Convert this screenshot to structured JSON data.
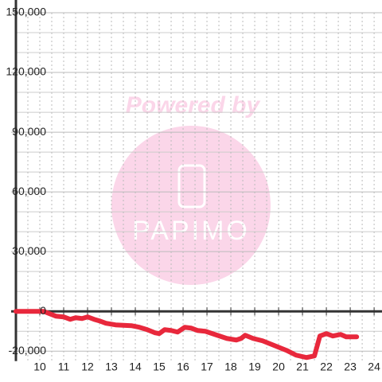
{
  "chart_data": {
    "type": "line",
    "watermark": {
      "top": "Powered by",
      "logo": "PAPIMO"
    },
    "x": [
      9,
      10.17,
      10.33,
      10.67,
      11,
      11.27,
      11.5,
      11.77,
      12,
      12.27,
      12.5,
      12.77,
      13.17,
      13.83,
      14.17,
      14.5,
      14.83,
      15,
      15.23,
      15.5,
      15.77,
      16.07,
      16.33,
      16.6,
      16.93,
      17.33,
      17.83,
      18.23,
      18.43,
      18.6,
      18.93,
      19.33,
      19.83,
      20.33,
      20.73,
      21.17,
      21.5,
      21.73,
      22,
      22.27,
      22.6,
      22.83,
      23.27
    ],
    "series": [
      {
        "color": "#e8283c",
        "values": [
          0,
          0,
          -800,
          -2400,
          -2800,
          -4000,
          -3200,
          -3600,
          -2800,
          -4000,
          -4800,
          -6000,
          -6800,
          -7200,
          -8000,
          -9200,
          -10800,
          -11200,
          -9200,
          -9600,
          -10400,
          -8000,
          -8400,
          -9600,
          -10000,
          -11600,
          -13600,
          -14400,
          -13600,
          -12000,
          -13600,
          -14800,
          -17200,
          -19600,
          -22000,
          -23200,
          -22400,
          -12400,
          -11200,
          -12400,
          -11600,
          -12800,
          -12800
        ]
      }
    ],
    "xlim": [
      9,
      24.33
    ],
    "xticks": [
      10,
      11,
      12,
      13,
      14,
      15,
      16,
      17,
      18,
      19,
      20,
      21,
      22,
      23,
      24
    ],
    "x_minor_ticks": [
      9.5,
      10.5,
      11.5,
      12.5,
      13.5,
      14.5,
      15.5,
      16.5,
      17.5,
      18.5,
      19.5,
      20.5,
      21.5,
      22.5,
      23.5
    ],
    "ylim": [
      -25000,
      150000
    ],
    "yticks": [
      {
        "value": -20000,
        "label": "-20,000"
      },
      0,
      {
        "value": 30000,
        "label": "30,000"
      },
      {
        "value": 60000,
        "label": "60,000"
      },
      {
        "value": 90000,
        "label": "90,000"
      },
      {
        "value": 120000,
        "label": "120,000"
      },
      {
        "value": 150000,
        "label": "150,000"
      }
    ],
    "y_minor_ticks": [
      -10000,
      10000,
      20000,
      40000,
      50000,
      70000,
      80000,
      100000,
      110000,
      130000,
      140000
    ],
    "grid": true
  }
}
